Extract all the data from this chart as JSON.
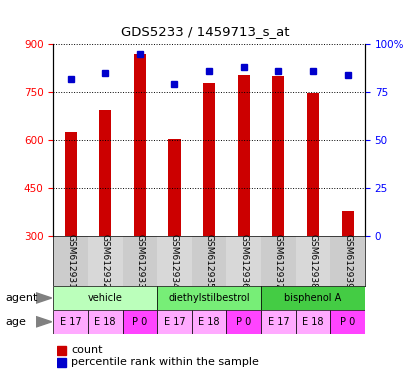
{
  "title": "GDS5233 / 1459713_s_at",
  "samples": [
    "GSM612931",
    "GSM612932",
    "GSM612933",
    "GSM612934",
    "GSM612935",
    "GSM612936",
    "GSM612937",
    "GSM612938",
    "GSM612939"
  ],
  "counts": [
    625,
    695,
    870,
    603,
    780,
    805,
    800,
    748,
    380
  ],
  "percentiles": [
    82,
    85,
    95,
    79,
    86,
    88,
    86,
    86,
    84
  ],
  "ylim_left": [
    300,
    900
  ],
  "ylim_right": [
    0,
    100
  ],
  "yticks_left": [
    300,
    450,
    600,
    750,
    900
  ],
  "yticks_right": [
    0,
    25,
    50,
    75,
    100
  ],
  "bar_color": "#cc0000",
  "dot_color": "#0000cc",
  "bar_width": 0.35,
  "agent_groups": [
    {
      "label": "vehicle",
      "start": 0,
      "end": 3,
      "color": "#bbffbb"
    },
    {
      "label": "diethylstilbestrol",
      "start": 3,
      "end": 6,
      "color": "#77ee77"
    },
    {
      "label": "bisphenol A",
      "start": 6,
      "end": 9,
      "color": "#44cc44"
    }
  ],
  "ages": [
    "E 17",
    "E 18",
    "P 0",
    "E 17",
    "E 18",
    "P 0",
    "E 17",
    "E 18",
    "P 0"
  ],
  "age_colors": [
    "#ffaaff",
    "#ffaaff",
    "#ff44ff",
    "#ffaaff",
    "#ffaaff",
    "#ff44ff",
    "#ffaaff",
    "#ffaaff",
    "#ff44ff"
  ]
}
